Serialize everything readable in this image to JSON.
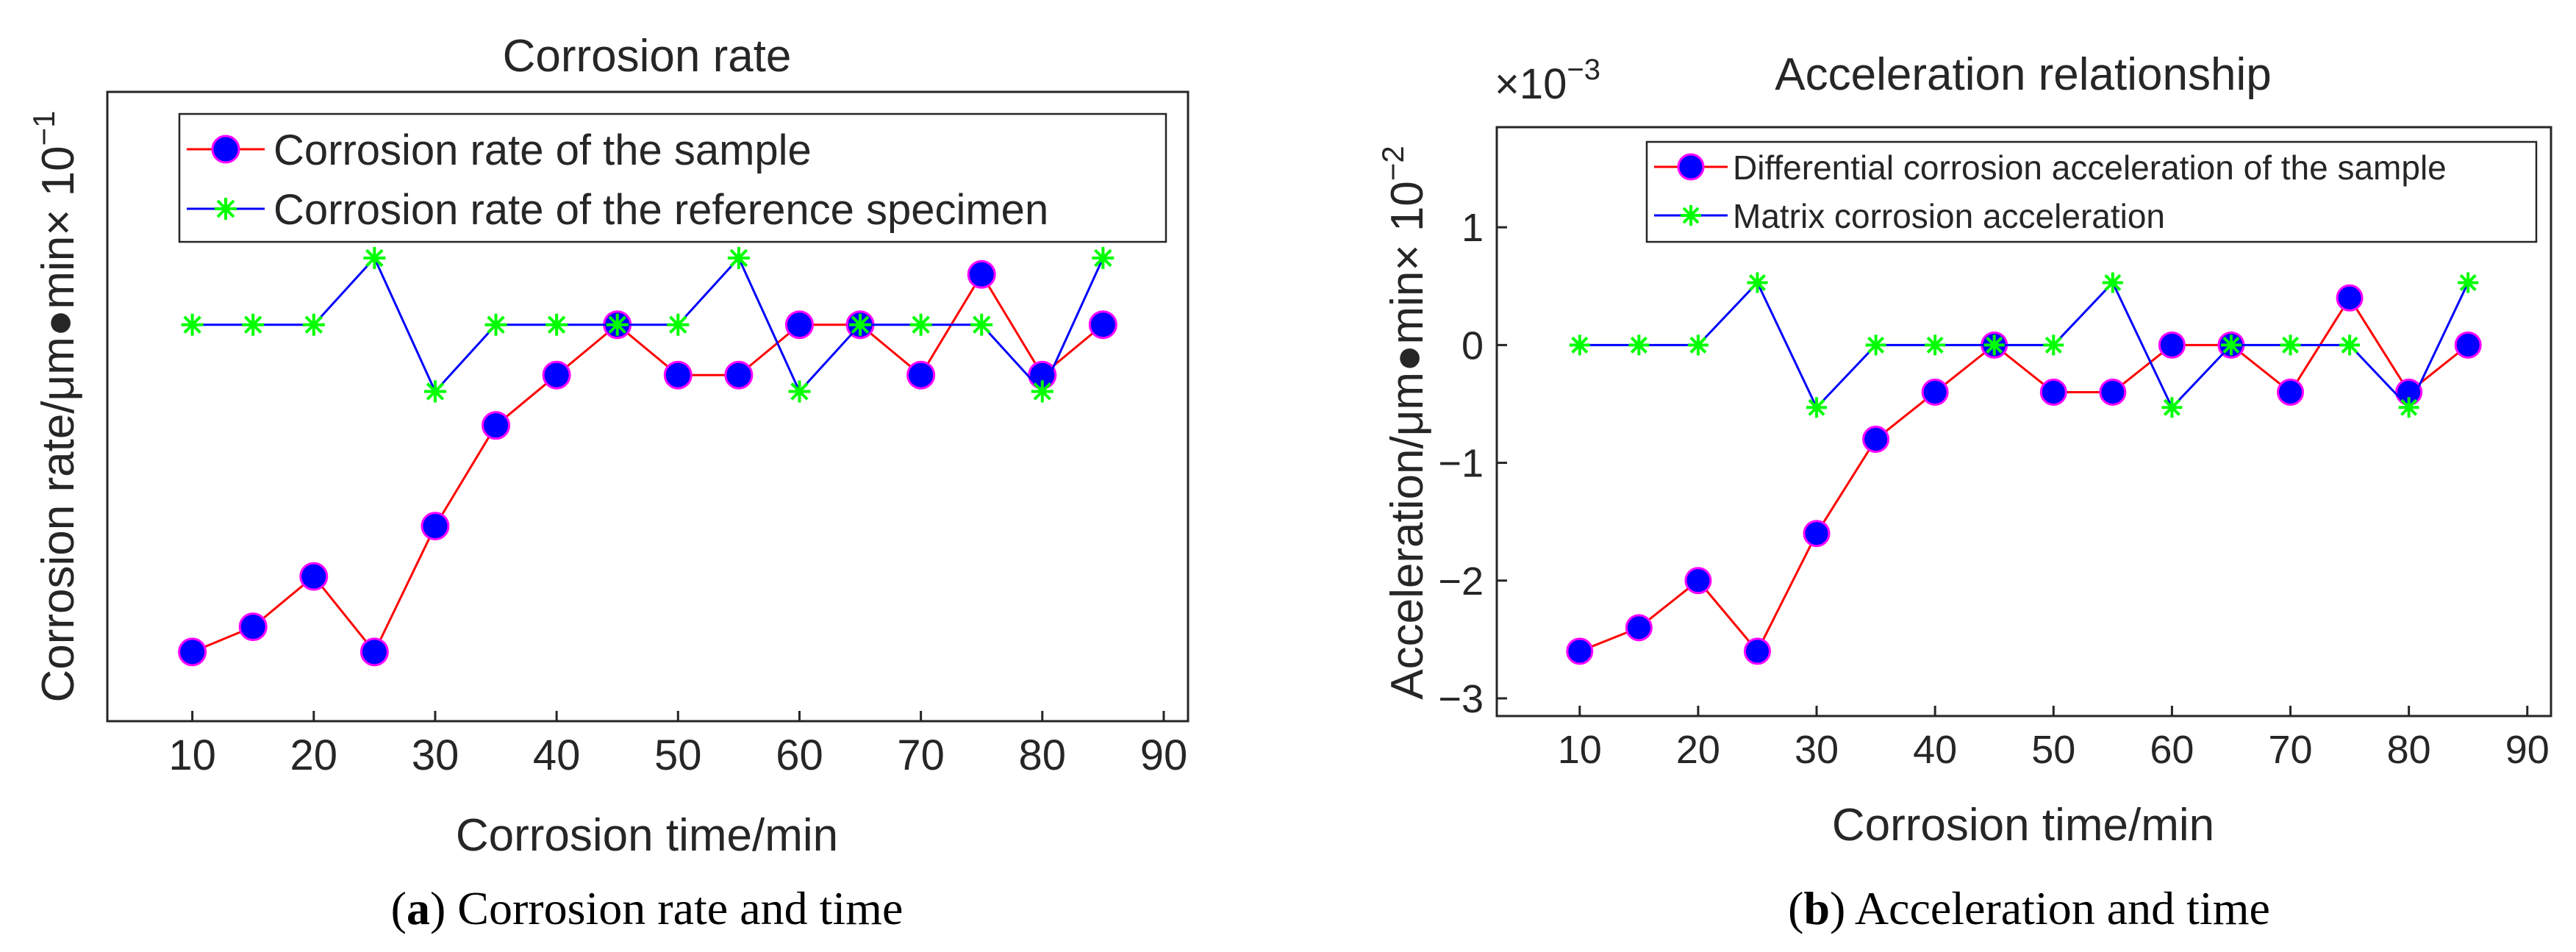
{
  "chart_data": [
    {
      "type": "line",
      "title": "Corrosion rate",
      "xlabel": "Corrosion time/min",
      "ylabel": "Corrosion rate/μm●min",
      "y_multiplier": "× 10",
      "y_multiplier_exp": "−1",
      "x_ticks": [
        "10",
        "20",
        "30",
        "40",
        "50",
        "60",
        "70",
        "80",
        "90"
      ],
      "y_ticks": [],
      "xlim": [
        3,
        92
      ],
      "ylim": [
        -3.15,
        1.85
      ],
      "legend_position": "top-right",
      "x": [
        10,
        15,
        20,
        25,
        30,
        35,
        40,
        45,
        50,
        55,
        60,
        65,
        70,
        75,
        80,
        85
      ],
      "series": [
        {
          "name": "Corrosion rate of the sample",
          "line_color": "#ff0000",
          "marker": "circle",
          "marker_fill": "#0000ff",
          "marker_edge": "#ff00ff",
          "values": [
            -2.6,
            -2.4,
            -2.0,
            -2.6,
            -1.6,
            -0.8,
            -0.4,
            0.0,
            -0.4,
            -0.4,
            0.0,
            0.0,
            -0.4,
            0.4,
            -0.4,
            0.0
          ]
        },
        {
          "name": "Corrosion rate of the reference specimen",
          "line_color": "#0000ff",
          "marker": "asterisk",
          "marker_color": "#00ff00",
          "values": [
            0.0,
            0.0,
            0.0,
            0.53,
            -0.53,
            0.0,
            0.0,
            0.0,
            0.0,
            0.53,
            -0.53,
            0.0,
            0.0,
            0.0,
            -0.53,
            0.53
          ]
        }
      ]
    },
    {
      "type": "line",
      "title": "Acceleration relationship",
      "xlabel": "Corrosion time/min",
      "ylabel": "Acceleration/μm●min",
      "y_multiplier": "× 10",
      "y_multiplier_exp": "−2",
      "axis_exponent_base": "×10",
      "axis_exponent": "−3",
      "x_ticks": [
        "10",
        "20",
        "30",
        "40",
        "50",
        "60",
        "70",
        "80",
        "90"
      ],
      "y_ticks": [
        "1",
        "0",
        "−1",
        "−2",
        "−3"
      ],
      "xlim": [
        3,
        92
      ],
      "ylim": [
        -3.15,
        1.85
      ],
      "legend_position": "top-right",
      "x": [
        10,
        15,
        20,
        25,
        30,
        35,
        40,
        45,
        50,
        55,
        60,
        65,
        70,
        75,
        80,
        85
      ],
      "series": [
        {
          "name": "Differential corrosion acceleration of the sample",
          "line_color": "#ff0000",
          "marker": "circle",
          "marker_fill": "#0000ff",
          "marker_edge": "#ff00ff",
          "values": [
            -2.6,
            -2.4,
            -2.0,
            -2.6,
            -1.6,
            -0.8,
            -0.4,
            0.0,
            -0.4,
            -0.4,
            0.0,
            0.0,
            -0.4,
            0.4,
            -0.4,
            0.0
          ]
        },
        {
          "name": "Matrix corrosion acceleration",
          "line_color": "#0000ff",
          "marker": "asterisk",
          "marker_color": "#00ff00",
          "values": [
            0.0,
            0.0,
            0.0,
            0.53,
            -0.53,
            0.0,
            0.0,
            0.0,
            0.0,
            0.53,
            -0.53,
            0.0,
            0.0,
            0.0,
            -0.53,
            0.53
          ]
        }
      ]
    }
  ],
  "captions": [
    {
      "label": "a",
      "text": " Corrosion rate and time"
    },
    {
      "label": "b",
      "text": " Acceleration and time"
    }
  ]
}
